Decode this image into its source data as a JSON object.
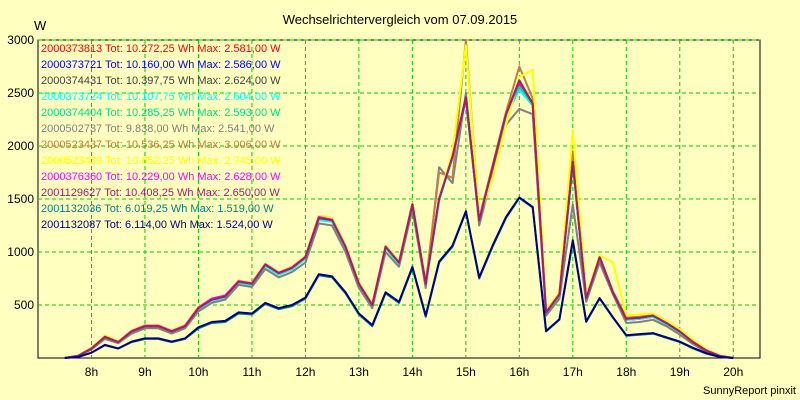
{
  "chart_data": {
    "type": "line",
    "title": "Wechselrichtervergleich vom 07.09.2015",
    "ylabel": "W",
    "footer": "SunnyReport pinxit",
    "xlim": [
      7.0,
      20.5
    ],
    "ylim": [
      0,
      3000
    ],
    "x_ticks": [
      {
        "value": 8,
        "label": "8h"
      },
      {
        "value": 9,
        "label": "9h"
      },
      {
        "value": 10,
        "label": "10h"
      },
      {
        "value": 11,
        "label": "11h"
      },
      {
        "value": 12,
        "label": "12h"
      },
      {
        "value": 13,
        "label": "13h"
      },
      {
        "value": 14,
        "label": "14h"
      },
      {
        "value": 15,
        "label": "15h"
      },
      {
        "value": 16,
        "label": "16h"
      },
      {
        "value": 17,
        "label": "17h"
      },
      {
        "value": 18,
        "label": "18h"
      },
      {
        "value": 19,
        "label": "19h"
      },
      {
        "value": 20,
        "label": "20h"
      }
    ],
    "y_ticks": [
      500,
      1000,
      1500,
      2000,
      2500,
      3000
    ],
    "grid": true,
    "legend_position": "top-left",
    "x": [
      7.5,
      7.75,
      8.0,
      8.25,
      8.5,
      8.75,
      9.0,
      9.25,
      9.5,
      9.75,
      10.0,
      10.25,
      10.5,
      10.75,
      11.0,
      11.25,
      11.5,
      11.75,
      12.0,
      12.25,
      12.5,
      12.75,
      13.0,
      13.25,
      13.5,
      13.75,
      14.0,
      14.25,
      14.5,
      14.75,
      15.0,
      15.25,
      15.5,
      15.75,
      16.0,
      16.25,
      16.5,
      16.75,
      17.0,
      17.25,
      17.5,
      17.75,
      18.0,
      18.25,
      18.5,
      18.75,
      19.0,
      19.25,
      19.5,
      19.75,
      20.0
    ],
    "series": [
      {
        "name": "2000373813 Tot: 10.272,25 Wh Max: 2.581,00 W",
        "color": "#ff0000",
        "values": [
          0,
          20,
          90,
          200,
          150,
          250,
          300,
          300,
          250,
          300,
          470,
          550,
          580,
          720,
          700,
          880,
          800,
          850,
          950,
          1320,
          1300,
          1050,
          700,
          500,
          1050,
          900,
          1450,
          700,
          1500,
          1900,
          2450,
          1300,
          1800,
          2300,
          2550,
          2400,
          430,
          600,
          1850,
          560,
          950,
          620,
          370,
          380,
          400,
          330,
          250,
          150,
          70,
          20,
          0
        ]
      },
      {
        "name": "2000373721 Tot: 10.160,00 Wh Max: 2.586,00 W",
        "color": "#0000ff",
        "values": [
          0,
          20,
          90,
          190,
          150,
          240,
          290,
          290,
          240,
          290,
          460,
          540,
          570,
          710,
          690,
          870,
          790,
          840,
          940,
          1310,
          1290,
          1040,
          690,
          490,
          1040,
          890,
          1440,
          690,
          1490,
          1890,
          2440,
          1290,
          1790,
          2290,
          2540,
          2390,
          420,
          590,
          1840,
          550,
          940,
          610,
          360,
          370,
          390,
          320,
          240,
          140,
          60,
          20,
          0
        ]
      },
      {
        "name": "2000374431 Tot: 10.397,75 Wh Max: 2.624,00 W",
        "color": "#404040",
        "values": [
          0,
          20,
          95,
          205,
          150,
          255,
          305,
          305,
          255,
          305,
          475,
          555,
          585,
          725,
          705,
          885,
          805,
          855,
          955,
          1325,
          1305,
          1055,
          705,
          505,
          1055,
          905,
          1455,
          705,
          1505,
          1905,
          2460,
          1305,
          1805,
          2305,
          2580,
          2410,
          435,
          605,
          1860,
          565,
          955,
          625,
          375,
          385,
          405,
          335,
          255,
          155,
          75,
          20,
          0
        ]
      },
      {
        "name": "2000373724 Tot: 10.107,75 Wh Max: 2.604,00 W",
        "color": "#00ffff",
        "values": [
          0,
          20,
          85,
          190,
          145,
          240,
          290,
          290,
          240,
          290,
          460,
          540,
          570,
          705,
          685,
          865,
          785,
          835,
          935,
          1300,
          1285,
          1035,
          685,
          485,
          1035,
          885,
          1435,
          685,
          1485,
          1885,
          2430,
          1285,
          1785,
          2285,
          2530,
          2380,
          420,
          590,
          1830,
          550,
          935,
          605,
          360,
          370,
          390,
          320,
          240,
          140,
          60,
          20,
          0
        ]
      },
      {
        "name": "2000374404 Tot: 10.285,25 Wh Max: 2.593,00 W",
        "color": "#00e080",
        "values": [
          0,
          20,
          90,
          200,
          150,
          250,
          300,
          300,
          250,
          300,
          470,
          550,
          580,
          720,
          700,
          880,
          800,
          850,
          950,
          1320,
          1300,
          1050,
          700,
          500,
          1050,
          900,
          1450,
          700,
          1500,
          1900,
          2450,
          1300,
          1800,
          2300,
          2560,
          2400,
          430,
          600,
          1850,
          560,
          950,
          620,
          370,
          380,
          400,
          330,
          250,
          150,
          70,
          20,
          0
        ]
      },
      {
        "name": "2000502737 Tot: 9.838,00 Wh Max: 2.541,00 W",
        "color": "#808080",
        "values": [
          0,
          20,
          80,
          180,
          140,
          230,
          280,
          280,
          230,
          280,
          440,
          520,
          550,
          690,
          670,
          840,
          760,
          810,
          900,
          1270,
          1250,
          1000,
          660,
          470,
          1000,
          860,
          1400,
          660,
          1800,
          1650,
          2500,
          1250,
          1750,
          2200,
          2350,
          2300,
          400,
          560,
          1450,
          530,
          900,
          600,
          330,
          340,
          360,
          300,
          220,
          130,
          55,
          15,
          0
        ]
      },
      {
        "name": "2000523437 Tot: 10.536,25 Wh Max: 3.006,00 W",
        "color": "#c08040",
        "values": [
          0,
          20,
          95,
          210,
          155,
          260,
          310,
          310,
          260,
          310,
          480,
          560,
          590,
          730,
          710,
          890,
          810,
          860,
          960,
          1340,
          1320,
          1060,
          710,
          510,
          1060,
          910,
          1460,
          710,
          1750,
          1700,
          3000,
          1320,
          1820,
          2320,
          2750,
          2450,
          440,
          610,
          1950,
          570,
          960,
          630,
          380,
          390,
          410,
          340,
          260,
          160,
          75,
          20,
          0
        ]
      },
      {
        "name": "2000523439 Tot: 10.652,25 Wh Max: 2.745,00 W",
        "color": "#ffff00",
        "values": [
          0,
          20,
          95,
          210,
          155,
          260,
          310,
          310,
          260,
          310,
          480,
          560,
          590,
          730,
          710,
          890,
          810,
          860,
          960,
          1340,
          1320,
          1060,
          710,
          510,
          1060,
          910,
          1460,
          710,
          1500,
          1950,
          2950,
          1330,
          1700,
          2200,
          2650,
          2720,
          450,
          620,
          2150,
          580,
          970,
          900,
          400,
          410,
          420,
          350,
          270,
          170,
          80,
          25,
          0
        ]
      },
      {
        "name": "2000376360 Tot: 10.229,00 Wh Max: 2.628,00 W",
        "color": "#ff00ff",
        "values": [
          0,
          20,
          90,
          200,
          150,
          255,
          305,
          305,
          255,
          305,
          475,
          560,
          590,
          725,
          705,
          885,
          805,
          855,
          955,
          1330,
          1305,
          1050,
          700,
          500,
          1050,
          900,
          1450,
          700,
          1500,
          1900,
          2450,
          1300,
          1800,
          2300,
          2600,
          2400,
          430,
          600,
          1850,
          560,
          950,
          620,
          370,
          380,
          400,
          330,
          250,
          150,
          70,
          20,
          0
        ]
      },
      {
        "name": "2001129627 Tot: 10.408,25 Wh Max: 2.650,00 W",
        "color": "#a02060",
        "values": [
          0,
          20,
          90,
          200,
          150,
          250,
          300,
          300,
          250,
          300,
          470,
          550,
          580,
          720,
          700,
          880,
          800,
          850,
          950,
          1320,
          1300,
          1050,
          700,
          500,
          1050,
          900,
          1450,
          700,
          1500,
          1900,
          2460,
          1300,
          1800,
          2300,
          2620,
          2400,
          430,
          600,
          1850,
          560,
          950,
          620,
          370,
          380,
          400,
          330,
          250,
          150,
          70,
          20,
          0
        ]
      },
      {
        "name": "2001132036 Tot: 6.019,25 Wh Max: 1.519,00 W",
        "color": "#008080",
        "values": [
          0,
          10,
          50,
          120,
          90,
          150,
          180,
          180,
          150,
          180,
          280,
          330,
          340,
          420,
          410,
          510,
          460,
          490,
          560,
          780,
          760,
          610,
          410,
          300,
          610,
          520,
          850,
          390,
          900,
          1050,
          1380,
          750,
          1050,
          1320,
          1510,
          1420,
          250,
          360,
          1100,
          340,
          560,
          380,
          210,
          220,
          230,
          190,
          150,
          90,
          40,
          10,
          0
        ]
      },
      {
        "name": "2001132087 Tot: 6.114,00 Wh Max: 1.524,00 W",
        "color": "#000080",
        "values": [
          0,
          10,
          50,
          125,
          90,
          155,
          185,
          185,
          155,
          185,
          290,
          340,
          350,
          430,
          420,
          520,
          470,
          500,
          570,
          790,
          770,
          620,
          420,
          310,
          620,
          530,
          860,
          400,
          910,
          1060,
          1385,
          760,
          1060,
          1330,
          1515,
          1425,
          255,
          365,
          1110,
          345,
          565,
          385,
          215,
          225,
          235,
          195,
          155,
          95,
          45,
          10,
          0
        ]
      }
    ]
  }
}
